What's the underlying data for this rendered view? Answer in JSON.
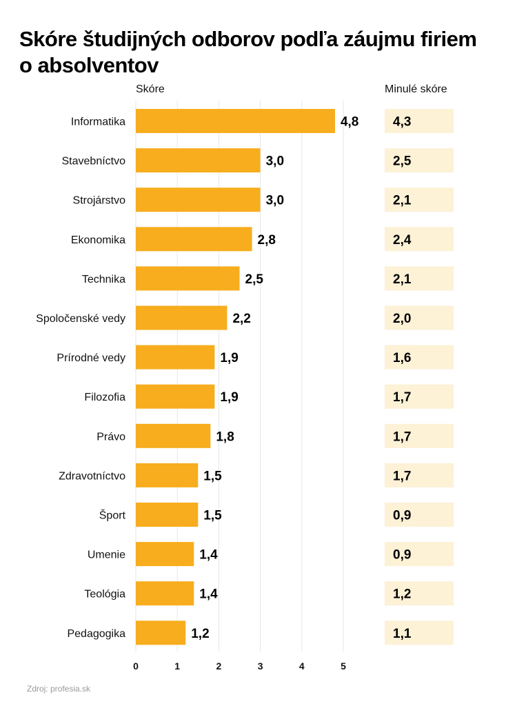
{
  "chart_data": {
    "type": "bar",
    "orientation": "horizontal",
    "title": "Skóre študijných odborov podľa záujmu firiem o absolventov",
    "xlabel": "",
    "ylabel": "",
    "value_column_label": "Skóre",
    "previous_column_label": "Minulé skóre",
    "categories": [
      "Informatika",
      "Stavebníctvo",
      "Strojárstvo",
      "Ekonomika",
      "Technika",
      "Spoločenské vedy",
      "Prírodné vedy",
      "Filozofia",
      "Právo",
      "Zdravotníctvo",
      "Šport",
      "Umenie",
      "Teológia",
      "Pedagogika"
    ],
    "series": [
      {
        "name": "Skóre",
        "values": [
          4.8,
          3.0,
          3.0,
          2.8,
          2.5,
          2.2,
          1.9,
          1.9,
          1.8,
          1.5,
          1.5,
          1.4,
          1.4,
          1.2
        ],
        "labels": [
          "4,8",
          "3,0",
          "3,0",
          "2,8",
          "2,5",
          "2,2",
          "1,9",
          "1,9",
          "1,8",
          "1,5",
          "1,5",
          "1,4",
          "1,4",
          "1,2"
        ]
      },
      {
        "name": "Minulé skóre",
        "values": [
          4.3,
          2.5,
          2.1,
          2.4,
          2.1,
          2.0,
          1.6,
          1.7,
          1.7,
          1.7,
          0.9,
          0.9,
          1.2,
          1.1
        ],
        "labels": [
          "4,3",
          "2,5",
          "2,1",
          "2,4",
          "2,1",
          "2,0",
          "1,6",
          "1,7",
          "1,7",
          "1,7",
          "0,9",
          "0,9",
          "1,2",
          "1,1"
        ]
      }
    ],
    "xlim": [
      0,
      5
    ],
    "xticks": [
      0,
      1,
      2,
      3,
      4,
      5
    ],
    "xtick_labels": [
      "0",
      "1",
      "2",
      "3",
      "4",
      "5"
    ],
    "grid": true,
    "colors": {
      "bar": "#F7AD1D",
      "previous_cell": "#FDF1D6",
      "grid": "#E6E6E6"
    },
    "source": "Zdroj: profesia.sk"
  }
}
